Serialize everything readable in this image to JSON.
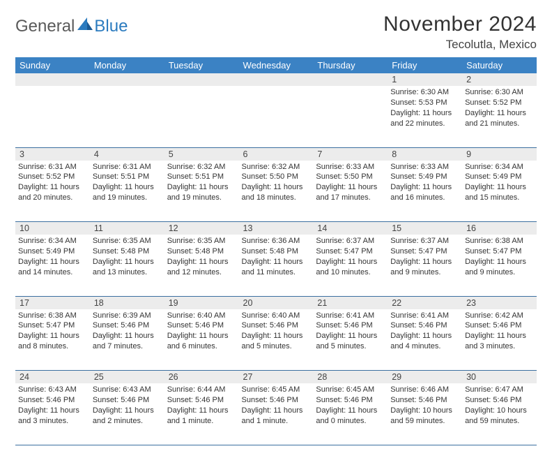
{
  "logo": {
    "general": "General",
    "blue": "Blue"
  },
  "title": "November 2024",
  "location": "Tecolutla, Mexico",
  "colors": {
    "header_bg": "#3b82c4",
    "header_text": "#ffffff",
    "daynum_bg": "#ececec",
    "border": "#3b6fa0",
    "logo_gray": "#5a5a5a",
    "logo_blue": "#2b7bbf",
    "text": "#333333"
  },
  "day_headers": [
    "Sunday",
    "Monday",
    "Tuesday",
    "Wednesday",
    "Thursday",
    "Friday",
    "Saturday"
  ],
  "weeks": [
    {
      "nums": [
        "",
        "",
        "",
        "",
        "",
        "1",
        "2"
      ],
      "cells": [
        null,
        null,
        null,
        null,
        null,
        {
          "sunrise": "Sunrise: 6:30 AM",
          "sunset": "Sunset: 5:53 PM",
          "daylight": "Daylight: 11 hours and 22 minutes."
        },
        {
          "sunrise": "Sunrise: 6:30 AM",
          "sunset": "Sunset: 5:52 PM",
          "daylight": "Daylight: 11 hours and 21 minutes."
        }
      ]
    },
    {
      "nums": [
        "3",
        "4",
        "5",
        "6",
        "7",
        "8",
        "9"
      ],
      "cells": [
        {
          "sunrise": "Sunrise: 6:31 AM",
          "sunset": "Sunset: 5:52 PM",
          "daylight": "Daylight: 11 hours and 20 minutes."
        },
        {
          "sunrise": "Sunrise: 6:31 AM",
          "sunset": "Sunset: 5:51 PM",
          "daylight": "Daylight: 11 hours and 19 minutes."
        },
        {
          "sunrise": "Sunrise: 6:32 AM",
          "sunset": "Sunset: 5:51 PM",
          "daylight": "Daylight: 11 hours and 19 minutes."
        },
        {
          "sunrise": "Sunrise: 6:32 AM",
          "sunset": "Sunset: 5:50 PM",
          "daylight": "Daylight: 11 hours and 18 minutes."
        },
        {
          "sunrise": "Sunrise: 6:33 AM",
          "sunset": "Sunset: 5:50 PM",
          "daylight": "Daylight: 11 hours and 17 minutes."
        },
        {
          "sunrise": "Sunrise: 6:33 AM",
          "sunset": "Sunset: 5:49 PM",
          "daylight": "Daylight: 11 hours and 16 minutes."
        },
        {
          "sunrise": "Sunrise: 6:34 AM",
          "sunset": "Sunset: 5:49 PM",
          "daylight": "Daylight: 11 hours and 15 minutes."
        }
      ]
    },
    {
      "nums": [
        "10",
        "11",
        "12",
        "13",
        "14",
        "15",
        "16"
      ],
      "cells": [
        {
          "sunrise": "Sunrise: 6:34 AM",
          "sunset": "Sunset: 5:49 PM",
          "daylight": "Daylight: 11 hours and 14 minutes."
        },
        {
          "sunrise": "Sunrise: 6:35 AM",
          "sunset": "Sunset: 5:48 PM",
          "daylight": "Daylight: 11 hours and 13 minutes."
        },
        {
          "sunrise": "Sunrise: 6:35 AM",
          "sunset": "Sunset: 5:48 PM",
          "daylight": "Daylight: 11 hours and 12 minutes."
        },
        {
          "sunrise": "Sunrise: 6:36 AM",
          "sunset": "Sunset: 5:48 PM",
          "daylight": "Daylight: 11 hours and 11 minutes."
        },
        {
          "sunrise": "Sunrise: 6:37 AM",
          "sunset": "Sunset: 5:47 PM",
          "daylight": "Daylight: 11 hours and 10 minutes."
        },
        {
          "sunrise": "Sunrise: 6:37 AM",
          "sunset": "Sunset: 5:47 PM",
          "daylight": "Daylight: 11 hours and 9 minutes."
        },
        {
          "sunrise": "Sunrise: 6:38 AM",
          "sunset": "Sunset: 5:47 PM",
          "daylight": "Daylight: 11 hours and 9 minutes."
        }
      ]
    },
    {
      "nums": [
        "17",
        "18",
        "19",
        "20",
        "21",
        "22",
        "23"
      ],
      "cells": [
        {
          "sunrise": "Sunrise: 6:38 AM",
          "sunset": "Sunset: 5:47 PM",
          "daylight": "Daylight: 11 hours and 8 minutes."
        },
        {
          "sunrise": "Sunrise: 6:39 AM",
          "sunset": "Sunset: 5:46 PM",
          "daylight": "Daylight: 11 hours and 7 minutes."
        },
        {
          "sunrise": "Sunrise: 6:40 AM",
          "sunset": "Sunset: 5:46 PM",
          "daylight": "Daylight: 11 hours and 6 minutes."
        },
        {
          "sunrise": "Sunrise: 6:40 AM",
          "sunset": "Sunset: 5:46 PM",
          "daylight": "Daylight: 11 hours and 5 minutes."
        },
        {
          "sunrise": "Sunrise: 6:41 AM",
          "sunset": "Sunset: 5:46 PM",
          "daylight": "Daylight: 11 hours and 5 minutes."
        },
        {
          "sunrise": "Sunrise: 6:41 AM",
          "sunset": "Sunset: 5:46 PM",
          "daylight": "Daylight: 11 hours and 4 minutes."
        },
        {
          "sunrise": "Sunrise: 6:42 AM",
          "sunset": "Sunset: 5:46 PM",
          "daylight": "Daylight: 11 hours and 3 minutes."
        }
      ]
    },
    {
      "nums": [
        "24",
        "25",
        "26",
        "27",
        "28",
        "29",
        "30"
      ],
      "cells": [
        {
          "sunrise": "Sunrise: 6:43 AM",
          "sunset": "Sunset: 5:46 PM",
          "daylight": "Daylight: 11 hours and 3 minutes."
        },
        {
          "sunrise": "Sunrise: 6:43 AM",
          "sunset": "Sunset: 5:46 PM",
          "daylight": "Daylight: 11 hours and 2 minutes."
        },
        {
          "sunrise": "Sunrise: 6:44 AM",
          "sunset": "Sunset: 5:46 PM",
          "daylight": "Daylight: 11 hours and 1 minute."
        },
        {
          "sunrise": "Sunrise: 6:45 AM",
          "sunset": "Sunset: 5:46 PM",
          "daylight": "Daylight: 11 hours and 1 minute."
        },
        {
          "sunrise": "Sunrise: 6:45 AM",
          "sunset": "Sunset: 5:46 PM",
          "daylight": "Daylight: 11 hours and 0 minutes."
        },
        {
          "sunrise": "Sunrise: 6:46 AM",
          "sunset": "Sunset: 5:46 PM",
          "daylight": "Daylight: 10 hours and 59 minutes."
        },
        {
          "sunrise": "Sunrise: 6:47 AM",
          "sunset": "Sunset: 5:46 PM",
          "daylight": "Daylight: 10 hours and 59 minutes."
        }
      ]
    }
  ]
}
